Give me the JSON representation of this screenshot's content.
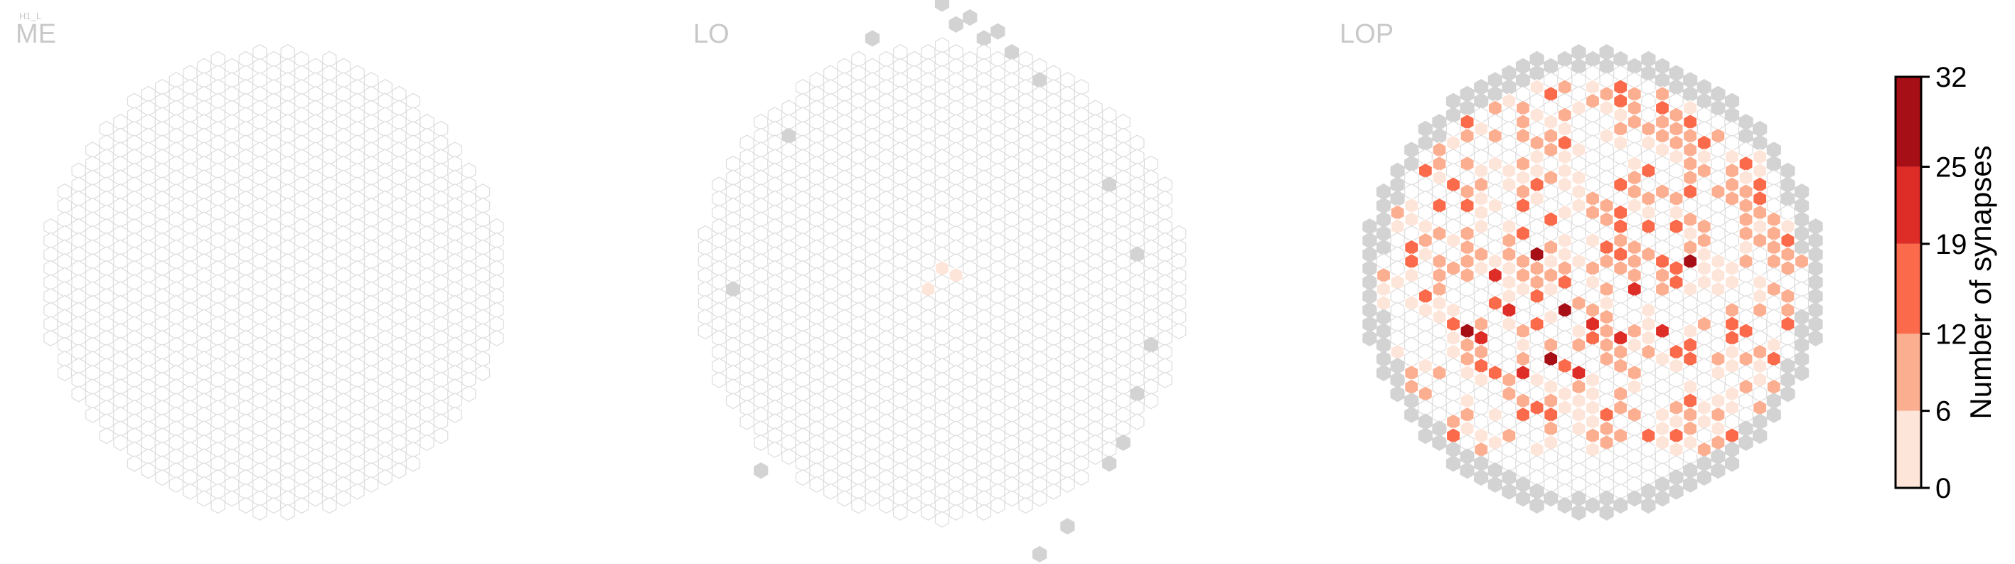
{
  "chart_data": {
    "type": "heatmap",
    "cell_type": "H1_L",
    "panels": [
      {
        "title": "ME",
        "boundary": "disc",
        "tint": "none",
        "out_of_range_columns": [],
        "nonzero_columns": []
      },
      {
        "title": "LO",
        "boundary": "wide-disc",
        "tint": "none",
        "out_of_range_columns": [
          {
            "h": -5,
            "v": -18
          },
          {
            "h": 0,
            "v": -20
          },
          {
            "h": 1,
            "v": -19
          },
          {
            "h": 2,
            "v": -19
          },
          {
            "h": 3,
            "v": -18
          },
          {
            "h": 4,
            "v": -18
          },
          {
            "h": 5,
            "v": -17
          },
          {
            "h": 7,
            "v": -15
          },
          {
            "h": 12,
            "v": -7
          },
          {
            "h": 14,
            "v": -2
          },
          {
            "h": 15,
            "v": 4
          },
          {
            "h": 14,
            "v": 8
          },
          {
            "h": 13,
            "v": 11
          },
          {
            "h": 12,
            "v": 13
          },
          {
            "h": 9,
            "v": 17
          },
          {
            "h": 7,
            "v": 19
          },
          {
            "h": -13,
            "v": 13
          },
          {
            "h": -15,
            "v": 0
          },
          {
            "h": -11,
            "v": -11
          }
        ],
        "nonzero_columns": [
          {
            "h": 0,
            "v": -1,
            "value": 2
          },
          {
            "h": 1,
            "v": -1,
            "value": 3
          },
          {
            "h": -1,
            "v": 0,
            "value": 2
          }
        ]
      },
      {
        "title": "LOP",
        "boundary": "disc",
        "tint": "rim",
        "out_of_range_columns": [],
        "nonzero_columns": [
          {
            "h": -3,
            "v": 5,
            "value": 30
          },
          {
            "h": 7,
            "v": -2,
            "value": 30
          },
          {
            "h": -2,
            "v": 2,
            "value": 28
          },
          {
            "h": -9,
            "v": 3,
            "value": 27
          },
          {
            "h": -4,
            "v": -2,
            "value": 26
          },
          {
            "h": -6,
            "v": 2,
            "value": 24
          },
          {
            "h": -8,
            "v": 4,
            "value": 23
          },
          {
            "h": 0,
            "v": 3,
            "value": 22
          },
          {
            "h": 2,
            "v": 4,
            "value": 22
          },
          {
            "h": -1,
            "v": 6,
            "value": 21
          },
          {
            "h": 5,
            "v": 3,
            "value": 21
          },
          {
            "h": -7,
            "v": -1,
            "value": 21
          },
          {
            "h": 3,
            "v": 0,
            "value": 20
          },
          {
            "h": -5,
            "v": 6,
            "value": 20
          }
        ]
      }
    ],
    "colorbar": {
      "label": "Number of synapses",
      "ticks": [
        "0",
        "6",
        "12",
        "19",
        "25",
        "32"
      ],
      "bins": [
        0,
        6,
        12,
        19,
        25,
        32
      ],
      "colors": [
        "#fee5d9",
        "#fcae91",
        "#fb6a4a",
        "#de2d26",
        "#a50f15"
      ]
    },
    "empty_color": "#ffffff",
    "out_of_range_color": "#d3d3d3"
  }
}
